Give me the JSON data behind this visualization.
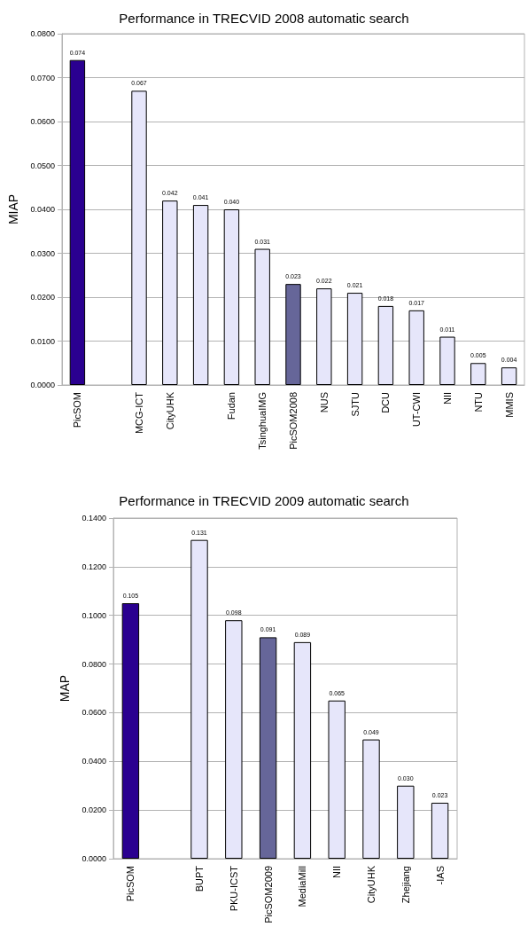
{
  "chart_data": [
    {
      "type": "bar",
      "title": "Performance in TRECVID 2008 automatic search",
      "ylabel": "MIAP",
      "categories": [
        "PicSOM",
        null,
        "MCG-ICT",
        "CityUHK",
        null,
        "Fudan",
        "TsinghuaIMG",
        "PicSOM2008",
        "NUS",
        "SJTU",
        "DCU",
        "UT-CWI",
        "NII",
        "NTU",
        "MMIS"
      ],
      "values": [
        0.074,
        null,
        0.067,
        0.042,
        0.041,
        0.04,
        0.031,
        0.023,
        0.022,
        0.021,
        0.018,
        0.017,
        0.011,
        0.005,
        0.004
      ],
      "value_labels": [
        "0.074",
        null,
        "0.067",
        "0.042",
        "0.041",
        "0.040",
        "0.031",
        "0.023",
        "0.022",
        "0.021",
        "0.018",
        "0.017",
        "0.011",
        "0.005",
        "0.004"
      ],
      "colors": [
        "#2a0090",
        "#e6e6fa",
        "#e6e6fa",
        "#e6e6fa",
        "#e6e6fa",
        "#e6e6fa",
        "#e6e6fa",
        "#666699",
        "#e6e6fa",
        "#e6e6fa",
        "#e6e6fa",
        "#e6e6fa",
        "#e6e6fa",
        "#e6e6fa",
        "#e6e6fa"
      ],
      "ylim": [
        0,
        0.08
      ],
      "yticks": [
        {
          "value": 0,
          "label": "0.0000"
        },
        {
          "value": 0.01,
          "label": "0.0100"
        },
        {
          "value": 0.02,
          "label": "0.0200"
        },
        {
          "value": 0.03,
          "label": "0.0300"
        },
        {
          "value": 0.04,
          "label": "0.0400"
        },
        {
          "value": 0.05,
          "label": "0.0500"
        },
        {
          "value": 0.06,
          "label": "0.0600"
        },
        {
          "value": 0.07,
          "label": "0.0700"
        },
        {
          "value": 0.08,
          "label": "0.0800"
        }
      ],
      "grid": "y"
    },
    {
      "type": "bar",
      "title": "Performance in TRECVID 2009 automatic search",
      "ylabel": "MAP",
      "categories": [
        "PicSOM",
        null,
        "BUPT",
        "PKU-ICST",
        "PicSOM2009",
        "MediaMill",
        "NII",
        "CityUHK",
        "Zhejiang",
        "-IAS"
      ],
      "values": [
        0.105,
        null,
        0.131,
        0.098,
        0.091,
        0.089,
        0.065,
        0.049,
        0.03,
        0.023
      ],
      "value_labels": [
        "0.105",
        null,
        "0.131",
        "0.098",
        "0.091",
        "0.089",
        "0.065",
        "0.049",
        "0.030",
        "0.023"
      ],
      "colors": [
        "#2a0090",
        "#e6e6fa",
        "#e6e6fa",
        "#e6e6fa",
        "#666699",
        "#e6e6fa",
        "#e6e6fa",
        "#e6e6fa",
        "#e6e6fa",
        "#e6e6fa"
      ],
      "ylim": [
        0,
        0.14
      ],
      "yticks": [
        {
          "value": 0,
          "label": "0.0000"
        },
        {
          "value": 0.02,
          "label": "0.0200"
        },
        {
          "value": 0.04,
          "label": "0.0400"
        },
        {
          "value": 0.06,
          "label": "0.0600"
        },
        {
          "value": 0.08,
          "label": "0.0800"
        },
        {
          "value": 0.1,
          "label": "0.1000"
        },
        {
          "value": 0.12,
          "label": "0.1200"
        },
        {
          "value": 0.14,
          "label": "0.1400"
        }
      ],
      "grid": "y"
    }
  ]
}
